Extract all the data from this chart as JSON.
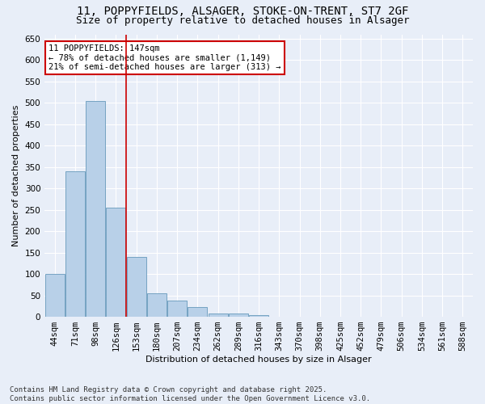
{
  "title1": "11, POPPYFIELDS, ALSAGER, STOKE-ON-TRENT, ST7 2GF",
  "title2": "Size of property relative to detached houses in Alsager",
  "xlabel": "Distribution of detached houses by size in Alsager",
  "ylabel": "Number of detached properties",
  "categories": [
    "44sqm",
    "71sqm",
    "98sqm",
    "126sqm",
    "153sqm",
    "180sqm",
    "207sqm",
    "234sqm",
    "262sqm",
    "289sqm",
    "316sqm",
    "343sqm",
    "370sqm",
    "398sqm",
    "425sqm",
    "452sqm",
    "479sqm",
    "506sqm",
    "534sqm",
    "561sqm",
    "588sqm"
  ],
  "values": [
    100,
    340,
    505,
    255,
    140,
    55,
    38,
    22,
    8,
    8,
    3,
    1,
    0,
    0,
    0,
    0,
    0,
    0,
    0,
    0,
    0
  ],
  "bar_color": "#b8d0e8",
  "bar_edgecolor": "#6699bb",
  "vline_color": "#cc0000",
  "annotation_title": "11 POPPYFIELDS: 147sqm",
  "annotation_line1": "← 78% of detached houses are smaller (1,149)",
  "annotation_line2": "21% of semi-detached houses are larger (313) →",
  "annotation_box_color": "#cc0000",
  "annotation_fill": "#ffffff",
  "ylim": [
    0,
    660
  ],
  "yticks": [
    0,
    50,
    100,
    150,
    200,
    250,
    300,
    350,
    400,
    450,
    500,
    550,
    600,
    650
  ],
  "background_color": "#e8eef8",
  "grid_color": "#ffffff",
  "footer1": "Contains HM Land Registry data © Crown copyright and database right 2025.",
  "footer2": "Contains public sector information licensed under the Open Government Licence v3.0.",
  "title_fontsize": 10,
  "subtitle_fontsize": 9,
  "axis_label_fontsize": 8,
  "tick_fontsize": 7.5,
  "annotation_fontsize": 7.5,
  "footer_fontsize": 6.5
}
